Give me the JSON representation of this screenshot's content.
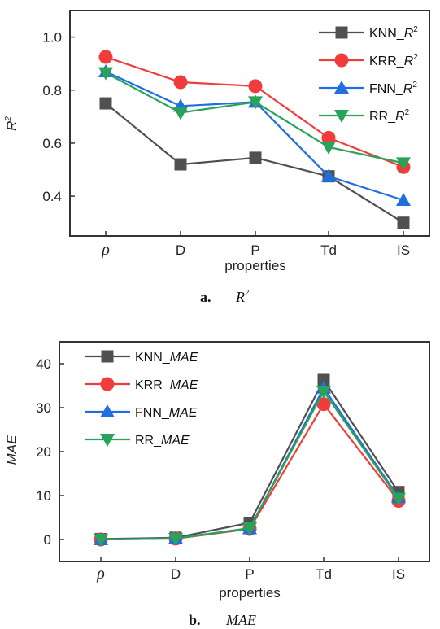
{
  "chart_data": [
    {
      "type": "line",
      "panel": "a",
      "caption_letter": "a.",
      "caption_title": "R",
      "caption_title_sup": "2",
      "xlabel": "properties",
      "ylabel": "R",
      "ylabel_sup": "2",
      "categories": [
        "ρ",
        "D",
        "P",
        "Td",
        "IS"
      ],
      "ylim": [
        0.25,
        1.1
      ],
      "yticks": [
        "0.4",
        "0.6",
        "0.8",
        "1.0"
      ],
      "ytick_values": [
        0.4,
        0.6,
        0.8,
        1.0
      ],
      "legend_position": "top-right",
      "series": [
        {
          "name": "KNN_",
          "name_italic": "R",
          "name_sup": "2",
          "color": "#505050",
          "marker": "square",
          "values": [
            0.75,
            0.52,
            0.545,
            0.475,
            0.3
          ]
        },
        {
          "name": "KRR_",
          "name_italic": "R",
          "name_sup": "2",
          "color": "#f03c3c",
          "marker": "circle",
          "values": [
            0.925,
            0.83,
            0.815,
            0.62,
            0.51
          ]
        },
        {
          "name": "FNN_",
          "name_italic": "R",
          "name_sup": "2",
          "color": "#1f6fe0",
          "marker": "triangle-up",
          "values": [
            0.87,
            0.74,
            0.755,
            0.475,
            0.385
          ]
        },
        {
          "name": "RR_",
          "name_italic": "R",
          "name_sup": "2",
          "color": "#2aa35a",
          "marker": "triangle-down",
          "values": [
            0.865,
            0.715,
            0.755,
            0.585,
            0.525
          ]
        }
      ]
    },
    {
      "type": "line",
      "panel": "b",
      "caption_letter": "b.",
      "caption_title": "MAE",
      "xlabel": "properties",
      "ylabel": "MAE",
      "categories": [
        "ρ",
        "D",
        "P",
        "Td",
        "IS"
      ],
      "ylim": [
        -5,
        45
      ],
      "yticks": [
        "0",
        "10",
        "20",
        "30",
        "40"
      ],
      "ytick_values": [
        0,
        10,
        20,
        30,
        40
      ],
      "legend_position": "top-left",
      "series": [
        {
          "name": "KNN_",
          "name_italic": "MAE",
          "color": "#505050",
          "marker": "square",
          "values": [
            0.1,
            0.4,
            3.8,
            36.3,
            10.8
          ]
        },
        {
          "name": "KRR_",
          "name_italic": "MAE",
          "color": "#f03c3c",
          "marker": "circle",
          "values": [
            0.0,
            0.2,
            2.4,
            30.8,
            8.8
          ]
        },
        {
          "name": "FNN_",
          "name_italic": "MAE",
          "color": "#1f6fe0",
          "marker": "triangle-up",
          "values": [
            0.0,
            0.3,
            2.5,
            34.5,
            9.6
          ]
        },
        {
          "name": "RR_",
          "name_italic": "MAE",
          "color": "#2aa35a",
          "marker": "triangle-down",
          "values": [
            0.0,
            0.2,
            2.6,
            33.7,
            9.3
          ]
        }
      ]
    }
  ]
}
